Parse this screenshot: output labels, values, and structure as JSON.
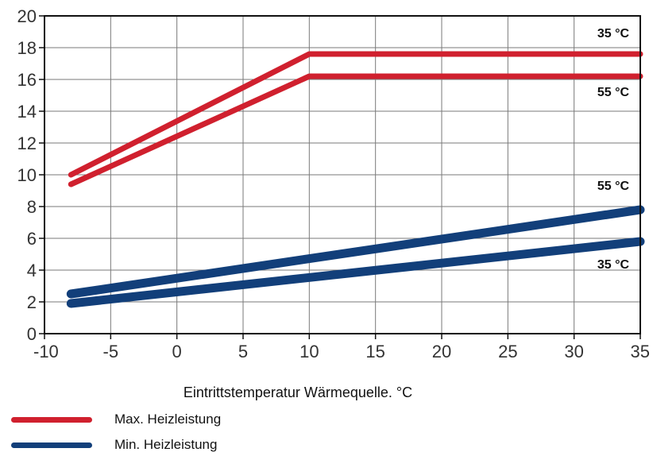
{
  "chart_data": {
    "type": "line",
    "xlabel": "Eintrittstemperatur Wärmequelle. °C",
    "ylabel": "",
    "xlim": [
      -10,
      35
    ],
    "ylim": [
      0,
      20
    ],
    "xticks": [
      "-10",
      "-5",
      "0",
      "5",
      "10",
      "15",
      "20",
      "25",
      "30",
      "35"
    ],
    "yticks": [
      "0",
      "2",
      "4",
      "6",
      "8",
      "10",
      "12",
      "14",
      "16",
      "18",
      "20"
    ],
    "grid": true,
    "legend_placement": "bottom-left",
    "colors": {
      "max": "#d0202e",
      "min": "#123f7a",
      "grid": "#7a7a7a"
    },
    "series": [
      {
        "group": "Max. Heizleistung",
        "label": "35 °C",
        "color": "#d0202e",
        "x": [
          -8,
          10,
          35
        ],
        "y": [
          10.0,
          17.6,
          17.6
        ]
      },
      {
        "group": "Max. Heizleistung",
        "label": "55 °C",
        "color": "#d0202e",
        "x": [
          -8,
          10,
          35
        ],
        "y": [
          9.4,
          16.2,
          16.2
        ]
      },
      {
        "group": "Min. Heizleistung",
        "label": "55 °C",
        "color": "#123f7a",
        "x": [
          -8,
          35
        ],
        "y": [
          2.5,
          7.8
        ]
      },
      {
        "group": "Min. Heizleistung",
        "label": "35 °C",
        "color": "#123f7a",
        "x": [
          -8,
          35
        ],
        "y": [
          1.9,
          5.8
        ]
      }
    ],
    "legend": [
      {
        "label": "Max. Heizleistung",
        "color": "#d0202e"
      },
      {
        "label": "Min. Heizleistung",
        "color": "#123f7a"
      }
    ]
  }
}
